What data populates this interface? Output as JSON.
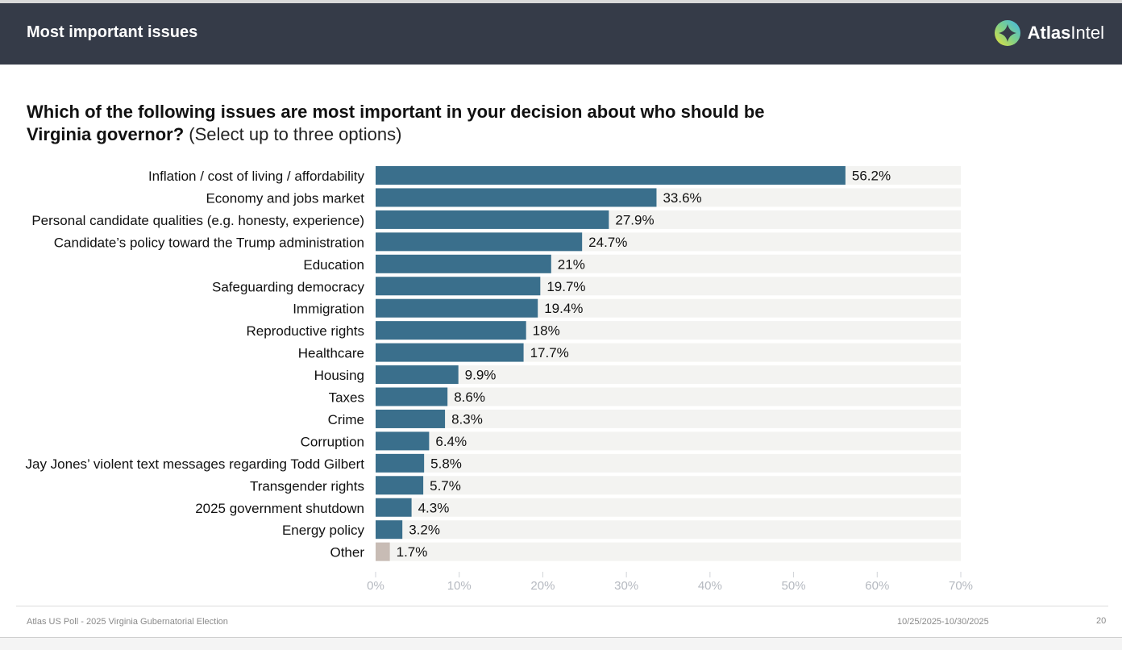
{
  "header": {
    "title": "Most important issues",
    "brand_bold": "Atlas",
    "brand_light": "Intel",
    "logo_icon": "atlasintel-logo-icon"
  },
  "question": {
    "bold": "Which of the following issues are most important in your decision about who should be Virginia governor?",
    "light": " (Select up to three options)"
  },
  "colors": {
    "bar": "#3a6f8c",
    "bar_other": "#c8bcb5",
    "track": "#f3f3f1",
    "header_bg": "#353b48",
    "tick_text": "#b5b9c0"
  },
  "chart_data": {
    "type": "bar",
    "orientation": "horizontal",
    "title": "Which of the following issues are most important in your decision about who should be Virginia governor? (Select up to three options)",
    "xlabel": "",
    "ylabel": "",
    "xlim": [
      0,
      70
    ],
    "x_ticks": [
      "0%",
      "10%",
      "20%",
      "30%",
      "40%",
      "50%",
      "60%",
      "70%"
    ],
    "x_tick_values": [
      0,
      10,
      20,
      30,
      40,
      50,
      60,
      70
    ],
    "categories": [
      "Inflation / cost of living / affordability",
      "Economy and jobs market",
      "Personal candidate qualities (e.g. honesty, experience)",
      "Candidate’s policy toward the Trump administration",
      "Education",
      "Safeguarding democracy",
      "Immigration",
      "Reproductive rights",
      "Healthcare",
      "Housing",
      "Taxes",
      "Crime",
      "Corruption",
      "Jay Jones’ violent text messages regarding Todd Gilbert",
      "Transgender rights",
      "2025 government shutdown",
      "Energy policy",
      "Other"
    ],
    "values": [
      56.2,
      33.6,
      27.9,
      24.7,
      21,
      19.7,
      19.4,
      18,
      17.7,
      9.9,
      8.6,
      8.3,
      6.4,
      5.8,
      5.7,
      4.3,
      3.2,
      1.7
    ],
    "labels": [
      "56.2%",
      "33.6%",
      "27.9%",
      "24.7%",
      "21%",
      "19.7%",
      "19.4%",
      "18%",
      "17.7%",
      "9.9%",
      "8.6%",
      "8.3%",
      "6.4%",
      "5.8%",
      "5.7%",
      "4.3%",
      "3.2%",
      "1.7%"
    ],
    "highlight_other_index": 17,
    "grid": false,
    "legend": "none"
  },
  "footer": {
    "source": "Atlas US Poll - 2025 Virginia Gubernatorial Election",
    "dates": "10/25/2025-10/30/2025",
    "page": "20"
  }
}
